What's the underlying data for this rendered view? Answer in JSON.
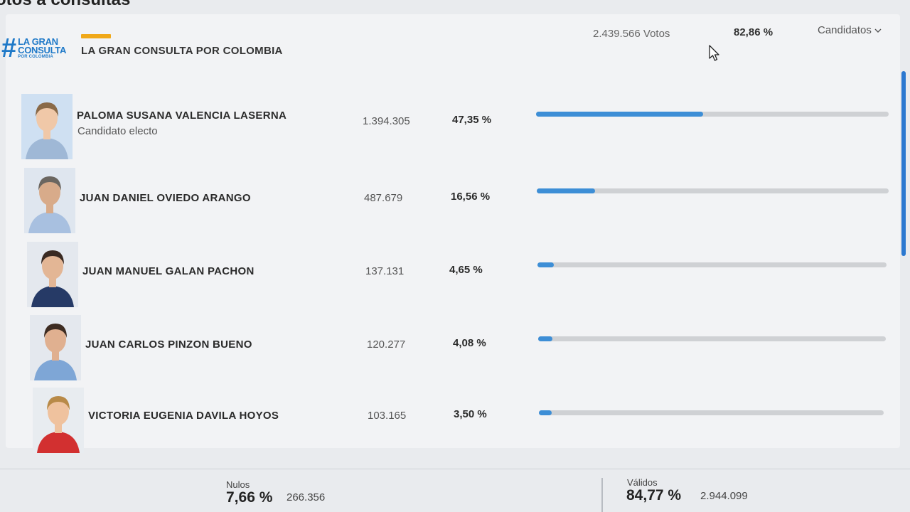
{
  "section_title": "otos a consultas",
  "party": {
    "logo_lines": [
      "LA GRAN",
      "CONSULTA",
      "POR COLOMBIA"
    ],
    "logo_hash": "#",
    "name": "LA GRAN CONSULTA POR COLOMBIA",
    "total_votes": "2.439.566 Votos",
    "total_pct": "82,86 %",
    "accent_color": "#f0a818"
  },
  "candidates_toggle": {
    "label": "Candidatos",
    "icon": "chevron-down-icon"
  },
  "candidates": [
    {
      "name": "PALOMA SUSANA VALENCIA LASERNA",
      "subtitle": "Candidato electo",
      "votes": "1.394.305",
      "pct": "47,35 %",
      "share": 0.4735
    },
    {
      "name": "JUAN DANIEL OVIEDO ARANGO",
      "subtitle": "",
      "votes": "487.679",
      "pct": "16,56 %",
      "share": 0.1656
    },
    {
      "name": "JUAN MANUEL GALAN PACHON",
      "subtitle": "",
      "votes": "137.131",
      "pct": "4,65 %",
      "share": 0.0465
    },
    {
      "name": "JUAN CARLOS PINZON BUENO",
      "subtitle": "",
      "votes": "120.277",
      "pct": "4,08 %",
      "share": 0.0408
    },
    {
      "name": "VICTORIA EUGENIA DAVILA HOYOS",
      "subtitle": "",
      "votes": "103.165",
      "pct": "3,50 %",
      "share": 0.035
    }
  ],
  "footer": {
    "nulos": {
      "label": "Nulos",
      "pct": "7,66 %",
      "count": "266.356"
    },
    "validos": {
      "label": "Válidos",
      "pct": "84,77 %",
      "count": "2.944.099"
    }
  },
  "colors": {
    "bar_fill": "#3d8ed6",
    "bar_track": "#cfd1d4",
    "brand_blue": "#1f79c8"
  }
}
